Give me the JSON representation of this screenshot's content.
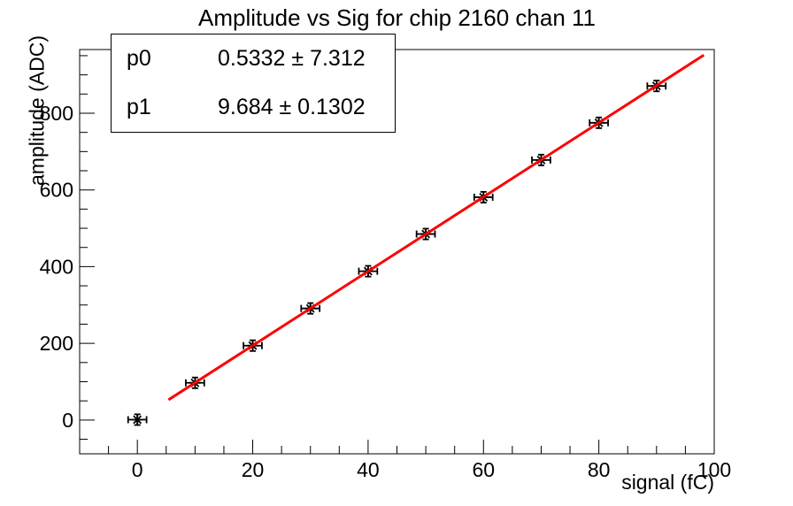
{
  "chart_data": {
    "type": "scatter",
    "title": "Amplitude vs Sig for chip 2160 chan 11",
    "xlabel": "signal (fC)",
    "ylabel": "amplitude (ADC)",
    "x": [
      0,
      10,
      20,
      30,
      40,
      50,
      60,
      70,
      80,
      90
    ],
    "y": [
      1,
      97,
      194,
      291,
      388,
      485,
      581,
      678,
      775,
      871
    ],
    "x_err": 1.6,
    "y_err": 14,
    "xlim": [
      -10,
      100
    ],
    "ylim": [
      -88,
      966
    ],
    "xticks": [
      0,
      20,
      40,
      60,
      80,
      100
    ],
    "yticks": [
      0,
      200,
      400,
      600,
      800
    ],
    "x_minor_step": 5,
    "y_minor_step": 50,
    "grid": false,
    "legend": "none",
    "marker": "asterisk-with-error-bars",
    "marker_color": "#000000",
    "frame_color": "#000000",
    "background": "#ffffff",
    "fit": {
      "type": "linear",
      "p0": 0.5332,
      "p1": 9.684,
      "x_range": [
        5.4,
        98.2
      ],
      "color": "#ff0000"
    }
  },
  "stats_box": {
    "rows": [
      {
        "label": "p0",
        "value": "0.5332 ± 7.312"
      },
      {
        "label": "p1",
        "value": "9.684 ± 0.1302"
      }
    ]
  }
}
